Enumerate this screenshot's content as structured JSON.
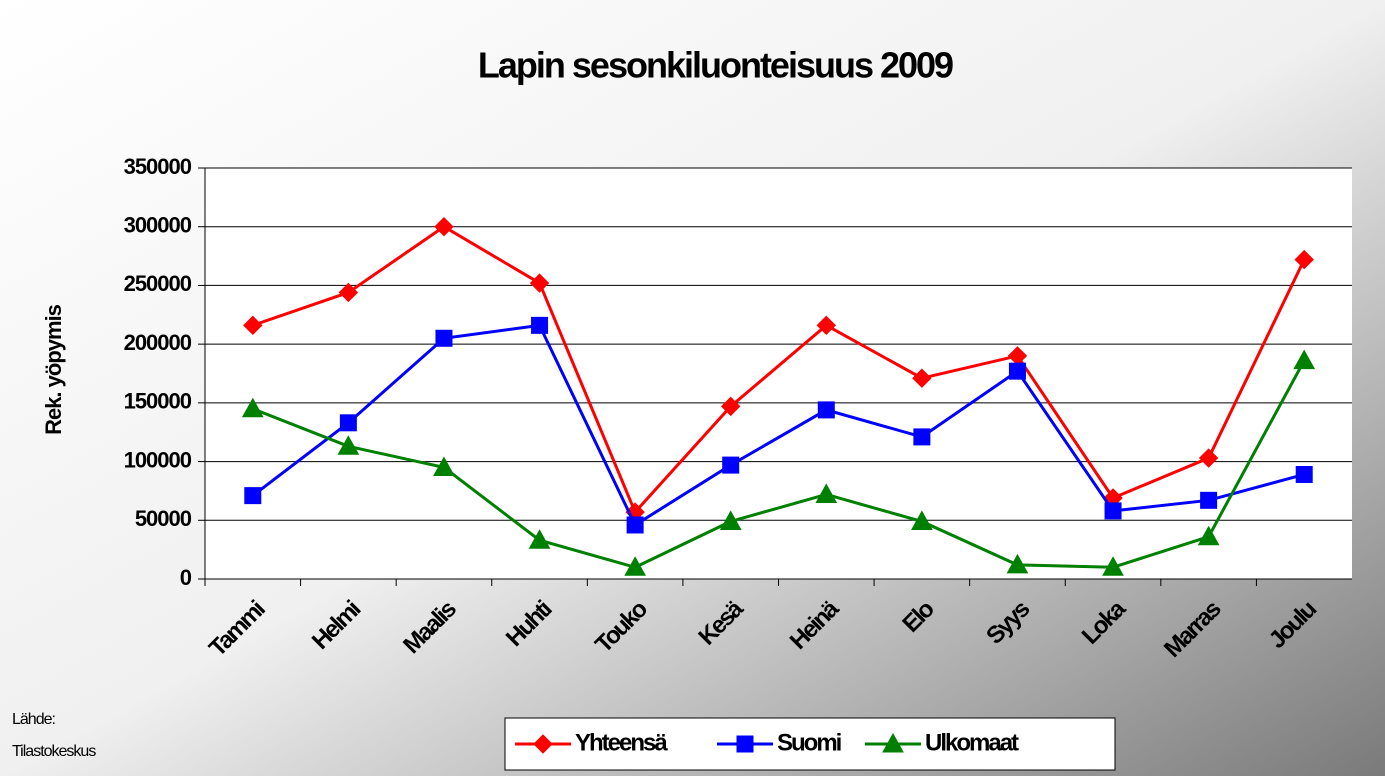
{
  "chart_data": {
    "type": "line",
    "title": "Lapin sesonkiluonteisuus 2009",
    "y_label": "Rek. yöpymis",
    "source": [
      "Lähde:",
      "Tilastokeskus"
    ],
    "categories": [
      "Tammi",
      "Helmi",
      "Maalis",
      "Huhti",
      "Touko",
      "Kesä",
      "Heinä",
      "Elo",
      "Syys",
      "Loka",
      "Marras",
      "Joulu"
    ],
    "series": [
      {
        "name": "Yhteensä",
        "color": "#ff0000",
        "marker": "diamond",
        "values": [
          216000,
          244000,
          300000,
          252000,
          57000,
          147000,
          216000,
          171000,
          190000,
          69000,
          103000,
          272000
        ]
      },
      {
        "name": "Suomi",
        "color": "#0000ff",
        "marker": "square",
        "values": [
          71000,
          133000,
          205000,
          216000,
          46000,
          97000,
          144000,
          121000,
          177000,
          58000,
          67000,
          89000
        ]
      },
      {
        "name": "Ulkomaat",
        "color": "#008000",
        "marker": "triangle",
        "values": [
          145000,
          113000,
          95000,
          33000,
          10000,
          49000,
          72000,
          49000,
          12000,
          10000,
          36000,
          186000
        ]
      }
    ],
    "ylim": [
      0,
      350000
    ],
    "yticks": [
      0,
      50000,
      100000,
      150000,
      200000,
      250000,
      300000,
      350000
    ],
    "grid": true,
    "legend": "bottom"
  }
}
